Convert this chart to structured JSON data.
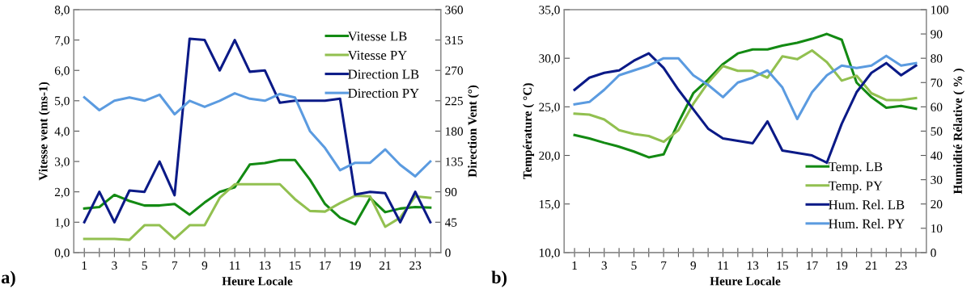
{
  "chart_data": [
    {
      "type": "line",
      "xlabel": "Heure Locale",
      "ylabel": "Vitesse vent (ms-1)",
      "y2label": "Direction Vent (°)",
      "categories": [
        "1",
        null,
        "3",
        null,
        "5",
        null,
        "7",
        null,
        "9",
        null,
        "11",
        null,
        "13",
        null,
        "15",
        null,
        "17",
        null,
        "19",
        null,
        "21",
        null,
        "23",
        null
      ],
      "series": [
        {
          "name": "Vitesse LB",
          "color": "#138a13",
          "values": [
            1.45,
            1.5,
            1.9,
            1.7,
            1.55,
            1.55,
            1.6,
            1.25,
            1.65,
            2.0,
            2.15,
            2.9,
            2.95,
            3.05,
            3.05,
            2.4,
            1.6,
            1.15,
            0.93,
            1.8,
            1.33,
            1.45,
            1.5,
            1.48
          ]
        },
        {
          "name": "Vitesse PY",
          "color": "#92c050",
          "values": [
            0.45,
            0.45,
            0.45,
            0.42,
            0.9,
            0.9,
            0.45,
            0.9,
            0.9,
            1.8,
            2.25,
            2.25,
            2.25,
            2.25,
            1.76,
            1.37,
            1.35,
            1.63,
            1.87,
            1.85,
            0.85,
            1.15,
            1.85,
            1.8
          ]
        },
        {
          "name": "Direction LB",
          "color": "#0b1a87",
          "axis": "y2",
          "values": [
            45,
            90,
            45,
            92,
            90,
            135,
            85,
            317,
            315,
            270,
            315,
            268,
            270,
            222,
            225,
            225,
            225,
            228,
            86,
            90,
            88,
            45,
            90,
            45
          ]
        },
        {
          "name": "Direction PY",
          "color": "#5b9be0",
          "axis": "y2",
          "values": [
            230,
            211,
            225,
            230,
            225,
            234,
            205,
            225,
            216,
            225,
            236,
            228,
            225,
            235,
            230,
            180,
            155,
            122,
            133,
            133,
            153,
            130,
            113,
            135
          ]
        }
      ],
      "ylim": [
        0,
        8
      ],
      "yticks": [
        {
          "value": 0,
          "label": "0,0"
        },
        {
          "value": 1,
          "label": "1,0"
        },
        {
          "value": 2,
          "label": "2,0"
        },
        {
          "value": 3,
          "label": "3,0"
        },
        {
          "value": 4,
          "label": "4,0"
        },
        {
          "value": 5,
          "label": "5,0"
        },
        {
          "value": 6,
          "label": "6,0"
        },
        {
          "value": 7,
          "label": "7,0"
        },
        {
          "value": 8,
          "label": "8,0"
        }
      ],
      "y2lim": [
        0,
        360
      ],
      "y2ticks": [
        0,
        45,
        90,
        135,
        180,
        225,
        270,
        315,
        360
      ],
      "legend": "top right",
      "grid": false,
      "marker": "none",
      "line_style": "solid",
      "annotations": [
        "a)"
      ]
    },
    {
      "type": "line",
      "xlabel": "Heure Locale",
      "ylabel": "Température ( °C)",
      "y2label": "Humidité Rélative ( % )",
      "categories": [
        "1",
        null,
        "3",
        null,
        "5",
        null,
        "7",
        null,
        "9",
        null,
        "11",
        null,
        "13",
        null,
        "15",
        null,
        "17",
        null,
        "19",
        null,
        "21",
        null,
        "23",
        null
      ],
      "series": [
        {
          "name": "Temp. LB",
          "color": "#138a13",
          "values": [
            22.1,
            21.75,
            21.3,
            20.9,
            20.4,
            19.8,
            20.1,
            23.4,
            26.4,
            27.8,
            29.4,
            30.5,
            30.9,
            30.9,
            31.3,
            31.6,
            32.0,
            32.5,
            31.9,
            27.5,
            26.0,
            24.9,
            25.1,
            24.8
          ]
        },
        {
          "name": "Temp. PY",
          "color": "#92c050",
          "values": [
            24.3,
            24.2,
            23.7,
            22.6,
            22.2,
            22.0,
            21.4,
            22.6,
            25.3,
            27.5,
            29.2,
            28.7,
            28.7,
            28.0,
            30.2,
            29.9,
            30.8,
            29.6,
            27.7,
            28.2,
            26.4,
            25.7,
            25.7,
            25.9
          ]
        },
        {
          "name": "Hum. Rel. LB",
          "color": "#0b1a87",
          "axis": "y2",
          "values": [
            67,
            72,
            74,
            75,
            79,
            82,
            76,
            67,
            59,
            51,
            47,
            46,
            45,
            54,
            42,
            41,
            40,
            37,
            53,
            66,
            74,
            78,
            73,
            77
          ]
        },
        {
          "name": "Hum. Rel. PY",
          "color": "#5b9be0",
          "axis": "y2",
          "values": [
            61,
            62,
            67,
            73,
            75,
            77,
            80,
            80,
            73,
            69,
            64,
            70,
            72,
            75,
            68,
            55,
            66,
            73,
            77,
            76,
            77,
            81,
            77,
            78
          ]
        }
      ],
      "ylim": [
        10,
        35
      ],
      "yticks": [
        {
          "value": 10,
          "label": "10,0"
        },
        {
          "value": 15,
          "label": "15,0"
        },
        {
          "value": 20,
          "label": "20,0"
        },
        {
          "value": 25,
          "label": "25,0"
        },
        {
          "value": 30,
          "label": "30,0"
        },
        {
          "value": 35,
          "label": "35,0"
        }
      ],
      "y2lim": [
        0,
        100
      ],
      "y2ticks": [
        0,
        10,
        20,
        30,
        40,
        50,
        60,
        70,
        80,
        90,
        100
      ],
      "legend": "bottom right",
      "grid": false,
      "marker": "none",
      "line_style": "solid",
      "annotations": [
        "b)"
      ]
    }
  ]
}
